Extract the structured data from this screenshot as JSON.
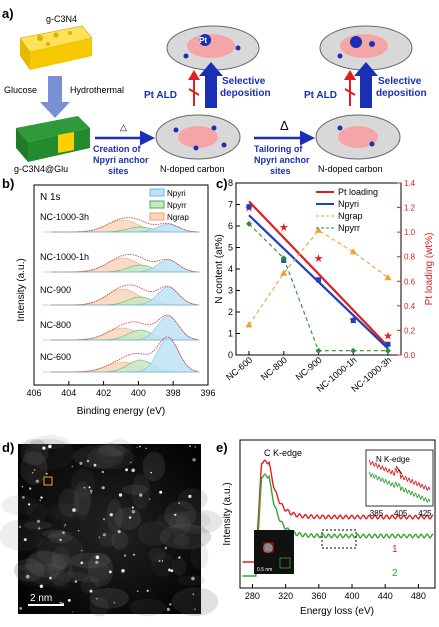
{
  "panel_labels": {
    "a": "a)",
    "b": "b)",
    "c": "c)",
    "d": "d)",
    "e": "e)"
  },
  "panel_a": {
    "gc3n4": "g-C3N4",
    "glucose": "Glucose",
    "hydrothermal": "Hydrothermal",
    "gc3n4_glu": "g-C3N4@Glu",
    "delta_small": "△",
    "creation_l1": "Creation of",
    "creation_l2": "Npyri anchor",
    "creation_l3": "sites",
    "delta_big": "Δ",
    "tailoring_l1": "Tailoring of",
    "tailoring_l2": "Npyri anchor",
    "tailoring_l3": "sites",
    "ndoped_1": "N-doped carbon",
    "ndoped_2": "N-doped carbon",
    "pt_ald_1": "Pt ALD",
    "pt_ald_2": "Pt ALD",
    "selective_1": "Selective",
    "deposition_1": "deposition",
    "selective_2": "Selective",
    "deposition_2": "deposition",
    "pt": "Pt"
  },
  "panel_b": {
    "title": "N 1s",
    "ylabel": "Intensity (a.u.)",
    "xlabel": "Binding energy (eV)",
    "xticks": [
      "406",
      "404",
      "402",
      "400",
      "398",
      "396"
    ],
    "samples": [
      "NC-1000-3h",
      "NC-1000-1h",
      "NC-900",
      "NC-800",
      "NC-600"
    ],
    "legend": [
      "Npyri",
      "Npyrr",
      "Ngrap"
    ],
    "colors": {
      "pyri": "#6cb8e0",
      "pyrr": "#4caf50",
      "grap": "#f0a070",
      "fit": "#c0392b"
    }
  },
  "chart_data": {
    "type": "line",
    "categories": [
      "NC-600",
      "NC-800",
      "NC-900",
      "NC-1000-1h",
      "NC-1000-3h"
    ],
    "ylabel": "N content (at%)",
    "y2label": "Pt loading (wt%)",
    "ylim": [
      0,
      8
    ],
    "y2lim": [
      0,
      1.4
    ],
    "yticks": [
      "0",
      "1",
      "2",
      "3",
      "4",
      "5",
      "6",
      "7",
      "8"
    ],
    "y2ticks": [
      "0.0",
      "0.2",
      "0.4",
      "0.6",
      "0.8",
      "1.0",
      "1.2",
      "1.4"
    ],
    "series": [
      {
        "name": "Pt loading",
        "axis": "right",
        "values": [
          1.2,
          1.04,
          0.79,
          0.29,
          0.16
        ],
        "color": "#e02020"
      },
      {
        "name": "Npyri",
        "axis": "left",
        "values": [
          6.9,
          4.4,
          3.5,
          1.6,
          0.5
        ],
        "color": "#1f3fbf"
      },
      {
        "name": "Ngrap",
        "axis": "left",
        "values": [
          1.4,
          3.8,
          5.8,
          4.8,
          3.6
        ],
        "color": "#f0a030"
      },
      {
        "name": "Npyrr",
        "axis": "left",
        "values": [
          6.1,
          4.5,
          0.2,
          0.2,
          0.2
        ],
        "color": "#2e8b3a"
      }
    ]
  },
  "panel_d": {
    "scale": "2 nm"
  },
  "panel_e": {
    "ylabel": "Intensity (a.u.)",
    "xlabel": "Energy loss (eV)",
    "xticks": [
      "280",
      "320",
      "360",
      "400",
      "440",
      "480"
    ],
    "c_edge": "C K-edge",
    "n_edge": "N K-edge",
    "inset_xticks": [
      "385",
      "405",
      "425"
    ],
    "curve1": "1",
    "curve2": "2",
    "inset_scale": "0.5 nm",
    "colors": {
      "c1": "#e02020",
      "c2": "#3aa335"
    }
  }
}
